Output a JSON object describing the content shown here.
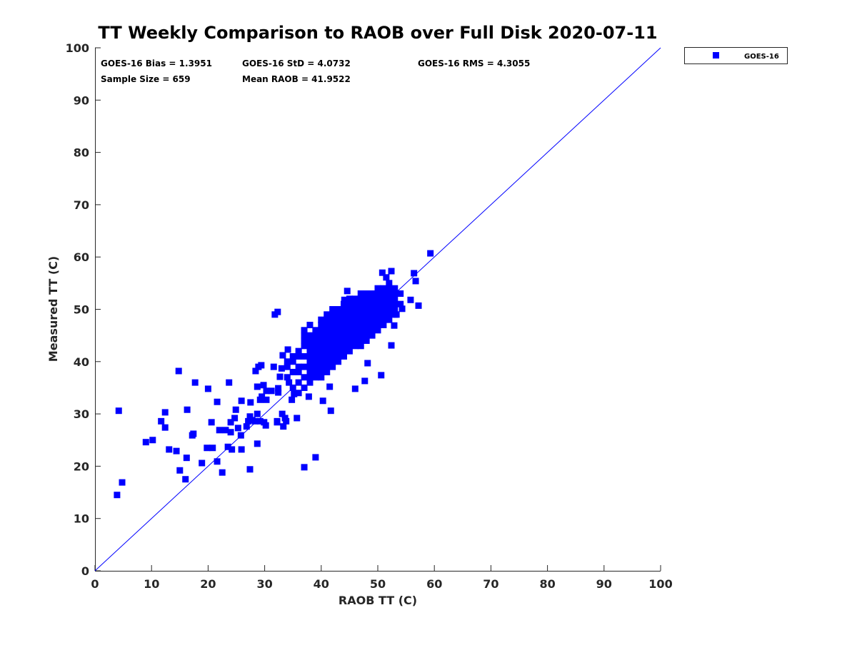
{
  "chart_data": {
    "type": "scatter",
    "title": "TT Weekly Comparison to RAOB over Full Disk 2020-07-11",
    "xlabel": "RAOB TT (C)",
    "ylabel": "Measured TT (C)",
    "xlim": [
      0,
      100
    ],
    "ylim": [
      0,
      100
    ],
    "xticks": [
      0,
      10,
      20,
      30,
      40,
      50,
      60,
      70,
      80,
      90,
      100
    ],
    "yticks": [
      0,
      10,
      20,
      30,
      40,
      50,
      60,
      70,
      80,
      90,
      100
    ],
    "grid": false,
    "legend": {
      "placement": "outside-top-right",
      "entries": [
        "GOES-16"
      ]
    },
    "series_color": "#0000ff",
    "reference_line": {
      "label": "1:1",
      "from": [
        0,
        0
      ],
      "to": [
        100,
        100
      ],
      "color": "#0000ff"
    },
    "stats": {
      "bias": "GOES-16 Bias = 1.3951",
      "std": "GOES-16 StD = 4.0732",
      "rms": "GOES-16 RMS = 4.3055",
      "sample": "Sample Size = 659",
      "mean": "Mean RAOB = 41.9522"
    },
    "series": [
      {
        "name": "GOES-16",
        "points": [
          [
            4.2,
            30.6
          ],
          [
            3.9,
            14.5
          ],
          [
            4.8,
            16.9
          ],
          [
            9,
            24.6
          ],
          [
            10.2,
            25
          ],
          [
            11.7,
            28.6
          ],
          [
            12.4,
            30.3
          ],
          [
            12.4,
            27.4
          ],
          [
            13.1,
            23.2
          ],
          [
            14.4,
            22.9
          ],
          [
            14.8,
            38.2
          ],
          [
            15,
            19.2
          ],
          [
            16,
            17.5
          ],
          [
            16.2,
            21.6
          ],
          [
            16.3,
            30.8
          ],
          [
            17.2,
            25.9
          ],
          [
            17.4,
            26.2
          ],
          [
            17.7,
            36
          ],
          [
            18.9,
            20.6
          ],
          [
            19.8,
            23.5
          ],
          [
            20,
            34.8
          ],
          [
            20.6,
            28.4
          ],
          [
            20.8,
            23.5
          ],
          [
            21.6,
            32.3
          ],
          [
            21.6,
            20.9
          ],
          [
            22,
            26.9
          ],
          [
            22.5,
            18.8
          ],
          [
            23.1,
            26.9
          ],
          [
            23.5,
            23.7
          ],
          [
            23.7,
            36
          ],
          [
            24,
            26.5
          ],
          [
            24,
            28.4
          ],
          [
            24.2,
            23.2
          ],
          [
            24.7,
            29.2
          ],
          [
            24.9,
            30.8
          ],
          [
            25.3,
            27.3
          ],
          [
            25.8,
            25.9
          ],
          [
            25.9,
            23.2
          ],
          [
            25.9,
            32.5
          ],
          [
            26.8,
            27.6
          ],
          [
            27.1,
            28.6
          ],
          [
            27.4,
            29.5
          ],
          [
            27.4,
            19.4
          ],
          [
            27.5,
            32.2
          ],
          [
            27.8,
            28.8
          ],
          [
            28.3,
            28.6
          ],
          [
            28.4,
            38.2
          ],
          [
            28.7,
            30
          ],
          [
            28.7,
            35.2
          ],
          [
            28.7,
            24.3
          ],
          [
            28.9,
            39
          ],
          [
            29.2,
            32.7
          ],
          [
            29.2,
            28.6
          ],
          [
            29.4,
            39.3
          ],
          [
            29.5,
            33.3
          ],
          [
            29.8,
            35.5
          ],
          [
            29.9,
            28.4
          ],
          [
            30.2,
            27.8
          ],
          [
            30.3,
            32.7
          ],
          [
            30.3,
            34.4
          ],
          [
            31.2,
            34.4
          ],
          [
            31.6,
            39
          ],
          [
            31.8,
            49
          ],
          [
            32.3,
            49.5
          ],
          [
            32.2,
            28.6
          ],
          [
            32.2,
            28.4
          ],
          [
            32.4,
            34.9
          ],
          [
            32.4,
            34.1
          ],
          [
            32.7,
            37.1
          ],
          [
            33,
            38.7
          ],
          [
            33.1,
            30
          ],
          [
            33.2,
            41.2
          ],
          [
            33.3,
            27.6
          ],
          [
            33.6,
            29.2
          ],
          [
            33.8,
            28.6
          ],
          [
            34.1,
            42.3
          ],
          [
            34.3,
            36
          ],
          [
            34.8,
            32.7
          ],
          [
            35.2,
            33.8
          ],
          [
            35.7,
            29.2
          ],
          [
            37,
            19.8
          ],
          [
            39,
            21.7
          ],
          [
            37.8,
            33.3
          ],
          [
            41.7,
            30.6
          ],
          [
            40.3,
            32.5
          ],
          [
            41.5,
            35.2
          ],
          [
            46,
            34.8
          ],
          [
            47.7,
            36.3
          ],
          [
            48.2,
            39.7
          ],
          [
            50.6,
            37.4
          ],
          [
            52.4,
            43.1
          ],
          [
            52.9,
            46.9
          ],
          [
            53.3,
            49
          ],
          [
            54.3,
            50.1
          ],
          [
            55.8,
            51.8
          ],
          [
            56.4,
            56.9
          ],
          [
            56.7,
            55.4
          ],
          [
            57.2,
            50.7
          ],
          [
            59.3,
            60.7
          ],
          [
            50.8,
            57
          ],
          [
            52.4,
            57.3
          ],
          [
            51.5,
            56.1
          ],
          [
            44.6,
            53.5
          ],
          [
            44.1,
            51.8
          ],
          [
            34,
            37
          ],
          [
            34,
            39
          ],
          [
            34,
            40
          ],
          [
            35,
            35
          ],
          [
            35,
            38
          ],
          [
            35,
            40
          ],
          [
            35,
            41
          ],
          [
            36,
            34
          ],
          [
            36,
            36
          ],
          [
            36,
            38
          ],
          [
            36,
            39
          ],
          [
            36,
            41
          ],
          [
            36,
            42
          ],
          [
            37,
            35
          ],
          [
            37,
            37
          ],
          [
            37,
            39
          ],
          [
            37,
            41
          ],
          [
            37,
            43
          ],
          [
            37,
            44
          ],
          [
            37,
            45
          ],
          [
            37,
            46
          ],
          [
            38,
            36
          ],
          [
            38,
            37
          ],
          [
            38,
            38
          ],
          [
            38,
            39
          ],
          [
            38,
            40
          ],
          [
            38,
            41
          ],
          [
            38,
            42
          ],
          [
            38,
            43
          ],
          [
            38,
            44
          ],
          [
            38,
            45
          ],
          [
            38,
            47
          ],
          [
            39,
            37
          ],
          [
            39,
            38
          ],
          [
            39,
            39
          ],
          [
            39,
            40
          ],
          [
            39,
            41
          ],
          [
            39,
            42
          ],
          [
            39,
            43
          ],
          [
            39,
            44
          ],
          [
            39,
            45
          ],
          [
            39,
            46
          ],
          [
            40,
            37
          ],
          [
            40,
            38
          ],
          [
            40,
            39
          ],
          [
            40,
            40
          ],
          [
            40,
            41
          ],
          [
            40,
            42
          ],
          [
            40,
            43
          ],
          [
            40,
            44
          ],
          [
            40,
            45
          ],
          [
            40,
            46
          ],
          [
            40,
            47
          ],
          [
            40,
            48
          ],
          [
            41,
            38
          ],
          [
            41,
            39
          ],
          [
            41,
            40
          ],
          [
            41,
            41
          ],
          [
            41,
            42
          ],
          [
            41,
            43
          ],
          [
            41,
            44
          ],
          [
            41,
            45
          ],
          [
            41,
            46
          ],
          [
            41,
            47
          ],
          [
            41,
            48
          ],
          [
            41,
            49
          ],
          [
            42,
            39
          ],
          [
            42,
            40
          ],
          [
            42,
            41
          ],
          [
            42,
            42
          ],
          [
            42,
            43
          ],
          [
            42,
            44
          ],
          [
            42,
            45
          ],
          [
            42,
            46
          ],
          [
            42,
            47
          ],
          [
            42,
            48
          ],
          [
            42,
            49
          ],
          [
            42,
            50
          ],
          [
            43,
            40
          ],
          [
            43,
            41
          ],
          [
            43,
            42
          ],
          [
            43,
            43
          ],
          [
            43,
            44
          ],
          [
            43,
            45
          ],
          [
            43,
            46
          ],
          [
            43,
            47
          ],
          [
            43,
            48
          ],
          [
            43,
            49
          ],
          [
            43,
            50
          ],
          [
            44,
            41
          ],
          [
            44,
            42
          ],
          [
            44,
            43
          ],
          [
            44,
            44
          ],
          [
            44,
            45
          ],
          [
            44,
            46
          ],
          [
            44,
            47
          ],
          [
            44,
            48
          ],
          [
            44,
            49
          ],
          [
            44,
            50
          ],
          [
            44,
            51
          ],
          [
            45,
            42
          ],
          [
            45,
            43
          ],
          [
            45,
            44
          ],
          [
            45,
            45
          ],
          [
            45,
            46
          ],
          [
            45,
            47
          ],
          [
            45,
            48
          ],
          [
            45,
            49
          ],
          [
            45,
            50
          ],
          [
            45,
            51
          ],
          [
            45,
            52
          ],
          [
            46,
            43
          ],
          [
            46,
            44
          ],
          [
            46,
            45
          ],
          [
            46,
            46
          ],
          [
            46,
            47
          ],
          [
            46,
            48
          ],
          [
            46,
            49
          ],
          [
            46,
            50
          ],
          [
            46,
            51
          ],
          [
            46,
            52
          ],
          [
            47,
            43
          ],
          [
            47,
            44
          ],
          [
            47,
            45
          ],
          [
            47,
            46
          ],
          [
            47,
            47
          ],
          [
            47,
            48
          ],
          [
            47,
            49
          ],
          [
            47,
            50
          ],
          [
            47,
            51
          ],
          [
            47,
            52
          ],
          [
            47,
            53
          ],
          [
            48,
            44
          ],
          [
            48,
            45
          ],
          [
            48,
            46
          ],
          [
            48,
            47
          ],
          [
            48,
            48
          ],
          [
            48,
            49
          ],
          [
            48,
            50
          ],
          [
            48,
            51
          ],
          [
            48,
            52
          ],
          [
            48,
            53
          ],
          [
            49,
            45
          ],
          [
            49,
            46
          ],
          [
            49,
            47
          ],
          [
            49,
            48
          ],
          [
            49,
            49
          ],
          [
            49,
            50
          ],
          [
            49,
            51
          ],
          [
            49,
            52
          ],
          [
            49,
            53
          ],
          [
            50,
            46
          ],
          [
            50,
            47
          ],
          [
            50,
            48
          ],
          [
            50,
            49
          ],
          [
            50,
            50
          ],
          [
            50,
            51
          ],
          [
            50,
            52
          ],
          [
            50,
            53
          ],
          [
            50,
            54
          ],
          [
            51,
            47
          ],
          [
            51,
            48
          ],
          [
            51,
            49
          ],
          [
            51,
            50
          ],
          [
            51,
            51
          ],
          [
            51,
            52
          ],
          [
            51,
            53
          ],
          [
            51,
            54
          ],
          [
            52,
            48
          ],
          [
            52,
            49
          ],
          [
            52,
            50
          ],
          [
            52,
            51
          ],
          [
            52,
            52
          ],
          [
            52,
            53
          ],
          [
            52,
            54
          ],
          [
            52,
            55
          ],
          [
            53,
            49
          ],
          [
            53,
            50
          ],
          [
            53,
            51
          ],
          [
            53,
            52
          ],
          [
            53,
            53
          ],
          [
            53,
            54
          ],
          [
            54,
            51
          ],
          [
            54,
            53
          ]
        ]
      }
    ]
  }
}
